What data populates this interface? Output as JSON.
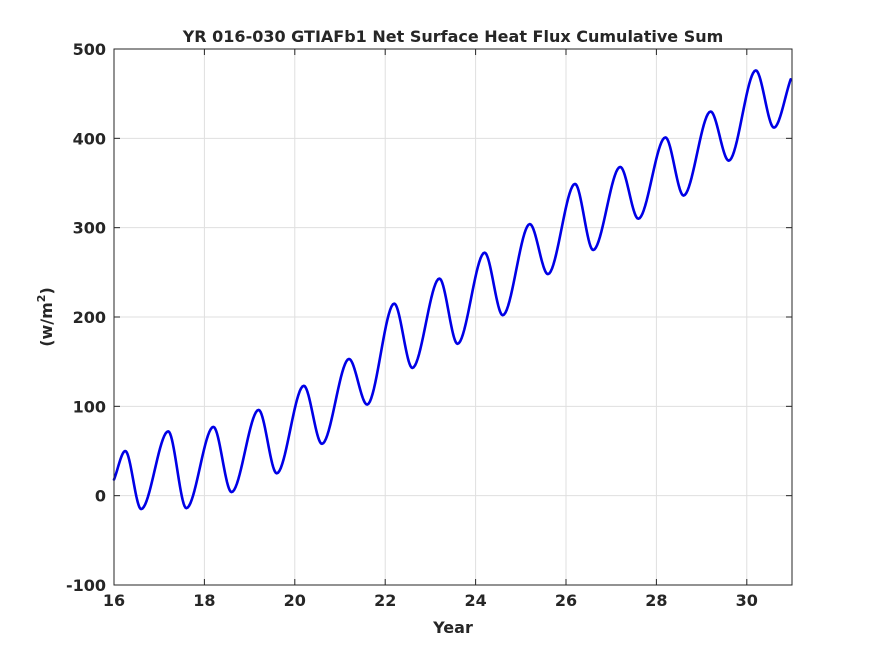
{
  "chart_data": {
    "type": "line",
    "title": "YR 016-030 GTIAFb1 Net Surface Heat Flux  Cumulative Sum",
    "xlabel": "Year",
    "ylabel_main": "(w/m",
    "ylabel_sup": "2",
    "ylabel_close": ")",
    "xlim": [
      16,
      31
    ],
    "ylim": [
      -100,
      500
    ],
    "grid": true,
    "x_ticks": [
      16,
      18,
      20,
      22,
      24,
      26,
      28,
      30
    ],
    "y_ticks": [
      -100,
      0,
      100,
      200,
      300,
      400,
      500
    ],
    "line_color": "#0000e6",
    "series": [
      {
        "x": [
          16.0,
          16.25,
          16.6,
          17.2,
          17.6,
          18.2,
          18.6,
          19.2,
          19.6,
          20.2,
          20.6,
          21.2,
          21.6,
          22.2,
          22.6,
          23.2,
          23.6,
          24.2,
          24.6,
          25.2,
          25.6,
          26.2,
          26.6,
          27.2,
          27.6,
          28.2,
          28.6,
          29.2,
          29.6,
          30.2,
          30.6,
          30.97
        ],
        "y": [
          18,
          50,
          -15,
          72,
          -14,
          77,
          4,
          96,
          25,
          123,
          58,
          153,
          102,
          215,
          143,
          243,
          170,
          272,
          202,
          304,
          248,
          349,
          275,
          368,
          310,
          401,
          336,
          430,
          375,
          476,
          412,
          466
        ]
      }
    ]
  }
}
